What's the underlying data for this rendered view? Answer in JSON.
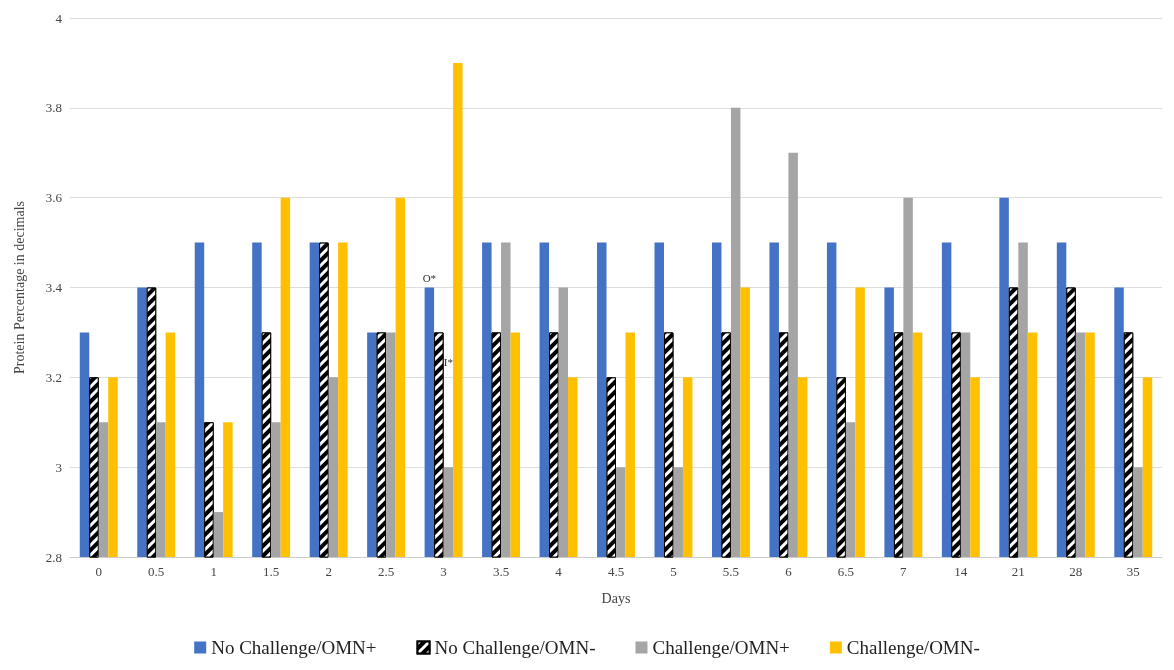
{
  "chart_data": {
    "type": "bar",
    "xlabel": "Days",
    "ylabel": "Protein Percentage in decimals",
    "categories": [
      "0",
      "0.5",
      "1",
      "1.5",
      "2",
      "2.5",
      "3",
      "3.5",
      "4",
      "4.5",
      "5",
      "5.5",
      "6",
      "6.5",
      "7",
      "14",
      "21",
      "28",
      "35"
    ],
    "series": [
      {
        "name": "No Challenge/OMN+",
        "color": "#4472c4",
        "values": [
          3.3,
          3.4,
          3.5,
          3.5,
          3.5,
          3.3,
          3.4,
          3.5,
          3.5,
          3.5,
          3.5,
          3.5,
          3.5,
          3.5,
          3.4,
          3.5,
          3.6,
          3.5,
          3.4
        ]
      },
      {
        "name": "No Challenge/OMN-",
        "color": "#000000",
        "values": [
          3.2,
          3.4,
          3.1,
          3.3,
          3.5,
          3.3,
          3.3,
          3.3,
          3.3,
          3.2,
          3.3,
          3.3,
          3.3,
          3.2,
          3.3,
          3.3,
          3.4,
          3.4,
          3.3
        ]
      },
      {
        "name": "Challenge/OMN+",
        "color": "#a5a5a5",
        "values": [
          3.1,
          3.1,
          2.9,
          3.1,
          3.2,
          3.3,
          3.0,
          3.5,
          3.4,
          3.0,
          3.0,
          3.8,
          3.7,
          3.1,
          3.6,
          3.3,
          3.5,
          3.3,
          3.0
        ]
      },
      {
        "name": "Challenge/OMN-",
        "color": "#ffc000",
        "values": [
          3.2,
          3.3,
          3.1,
          3.6,
          3.5,
          3.6,
          3.9,
          3.3,
          3.2,
          3.3,
          3.2,
          3.4,
          3.2,
          3.4,
          3.3,
          3.2,
          3.3,
          3.3,
          3.2
        ]
      }
    ],
    "ylim": [
      2.8,
      4
    ],
    "yticks": [
      2.8,
      3,
      3.2,
      3.4,
      3.6,
      3.8,
      4
    ],
    "grid": "y",
    "legend": "bottom",
    "annotations": [
      "O*",
      "I*"
    ]
  }
}
